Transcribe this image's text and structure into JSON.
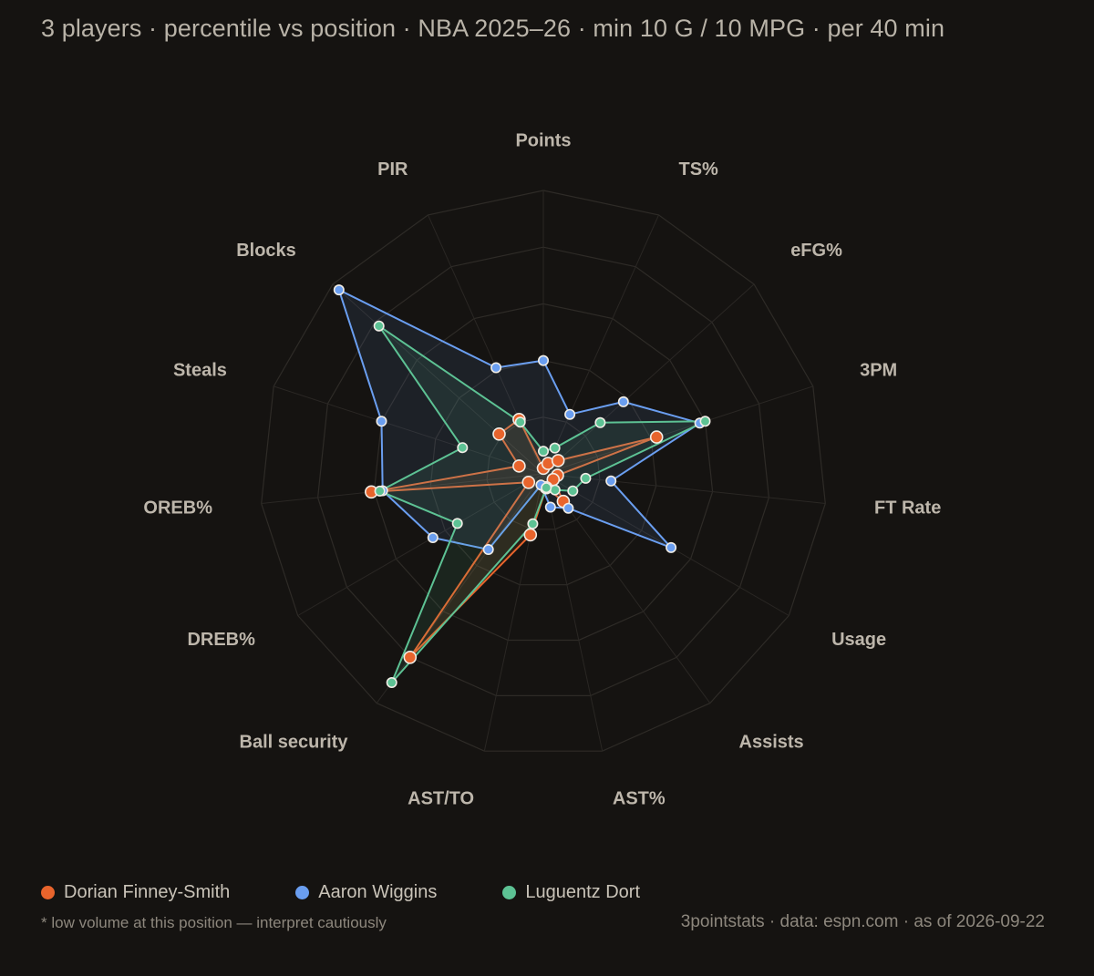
{
  "header": {
    "subtitle": "3 players · percentile vs position · NBA 2025–26 · min 10 G / 10 MPG · per 40 min"
  },
  "chart_data": {
    "type": "radar",
    "scale": [
      0,
      100
    ],
    "grid_rings": 5,
    "axes": [
      "Points",
      "TS%",
      "eFG%",
      "3PM",
      "FT Rate",
      "Usage",
      "Assists",
      "AST%",
      "AST/TO",
      "Ball security",
      "DREB%",
      "OREB%",
      "Steals",
      "Blocks",
      "PIR"
    ],
    "series": [
      {
        "name": "Dorian Finney-Smith",
        "color": "#e8642c",
        "values": [
          2,
          4,
          7,
          42,
          5,
          4,
          12,
          5,
          22,
          80,
          6,
          61,
          9,
          21,
          21
        ]
      },
      {
        "name": "Aaron Wiggins",
        "color": "#6a9ef0",
        "values": [
          40,
          23,
          38,
          58,
          24,
          52,
          15,
          12,
          4,
          33,
          45,
          57,
          60,
          97,
          41
        ]
      },
      {
        "name": "Luguentz Dort",
        "color": "#5dc294",
        "values": [
          8,
          10,
          27,
          60,
          15,
          12,
          7,
          5,
          18,
          91,
          35,
          58,
          30,
          78,
          20
        ]
      }
    ],
    "legend_position": "bottom-left"
  },
  "legend": {
    "items": [
      {
        "label": "Dorian Finney-Smith",
        "color": "#e8642c"
      },
      {
        "label": "Aaron Wiggins",
        "color": "#6a9ef0"
      },
      {
        "label": "Luguentz Dort",
        "color": "#5dc294"
      }
    ]
  },
  "footer": {
    "footnote": "* low volume at this position — interpret cautiously",
    "credit": "3pointstats · data: espn.com · as of 2026-09-22"
  }
}
